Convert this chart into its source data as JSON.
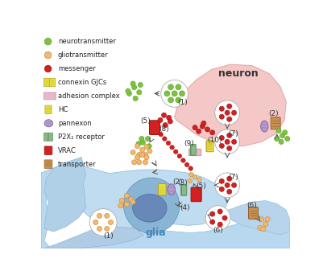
{
  "bg": "#ffffff",
  "neuron_color": "#f5c8c8",
  "neuron_edge": "#e8a8a8",
  "glia_outer": "#b8d8f0",
  "glia_mid": "#c8e4f8",
  "glia_inner": "#8bbcd8",
  "glia_core": "#6090b8",
  "neuron_label": "neuron",
  "glia_label": "glia",
  "green": "#7dc242",
  "green_edge": "#5a9e20",
  "orange": "#f0b870",
  "orange_edge": "#c88830",
  "red": "#d42020",
  "red_edge": "#991010",
  "yellow": "#e8e040",
  "yellow_edge": "#b0a020",
  "purple": "#b898d0",
  "purple_edge": "#806898",
  "green2": "#88bb88",
  "green2_edge": "#558855",
  "pink": "#e8b8c8",
  "pink_edge": "#c090a8",
  "brown": "#c89050",
  "brown_edge": "#906030",
  "legend_items": [
    {
      "shape": "dot",
      "color": "#7dc242",
      "edge": "#5a9e20",
      "label": "neurotransmitter"
    },
    {
      "shape": "dot",
      "color": "#f0b870",
      "edge": "#c88830",
      "label": "gliotransmitter"
    },
    {
      "shape": "dot",
      "color": "#d42020",
      "edge": "#991010",
      "label": "messenger"
    },
    {
      "shape": "gjc",
      "color": "#e8e040",
      "edge": "#b0a020",
      "label": "connexin GJCs"
    },
    {
      "shape": "adhesion",
      "color": "#e8b8c8",
      "edge": "#c090a8",
      "label": "adhesion complex"
    },
    {
      "shape": "hc",
      "color": "#e8e040",
      "edge": "#b0a020",
      "label": "HC"
    },
    {
      "shape": "pannexon",
      "color": "#b898d0",
      "edge": "#806898",
      "label": "pannexon"
    },
    {
      "shape": "p2x",
      "color": "#88bb88",
      "edge": "#558855",
      "label": "P2X₁ receptor"
    },
    {
      "shape": "vrac",
      "color": "#d42020",
      "edge": "#991010",
      "label": "VRAC"
    },
    {
      "shape": "transporter",
      "color": "#c89050",
      "edge": "#906030",
      "label": "transporter"
    }
  ]
}
